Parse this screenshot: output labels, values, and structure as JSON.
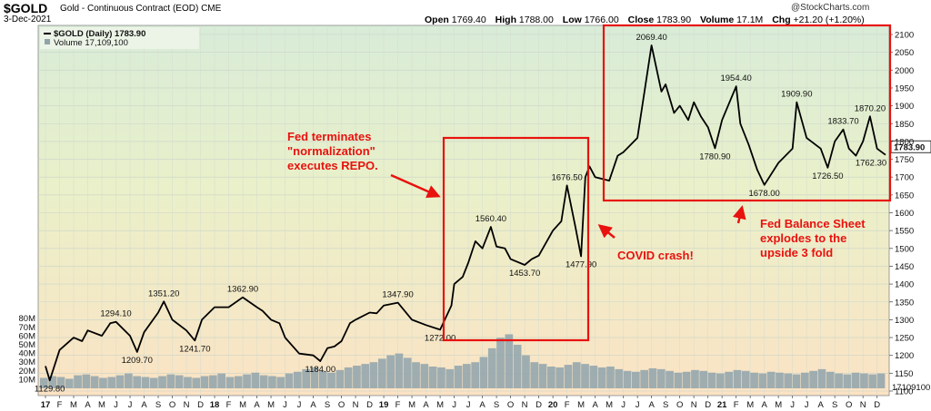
{
  "header": {
    "symbol": "$GOLD",
    "subtitle": "Gold - Continuous Contract (EOD)",
    "exchange": "CME",
    "date": "3-Dec-2021",
    "brand": "@StockCharts.com",
    "ohlc": [
      {
        "k": "Open",
        "v": "1769.40"
      },
      {
        "k": "High",
        "v": "1788.00"
      },
      {
        "k": "Low",
        "v": "1766.00"
      },
      {
        "k": "Close",
        "v": "1783.90"
      },
      {
        "k": "Volume",
        "v": "17.1M"
      },
      {
        "k": "Chg",
        "v": "+21.20 (+1.20%)"
      }
    ]
  },
  "legend": {
    "price": "$GOLD (Daily) 1783.90",
    "volume": "Volume 17,109,100"
  },
  "chart_data": {
    "type": "line",
    "title": "Gold - Continuous Contract (EOD)",
    "y_range": [
      1100,
      2100
    ],
    "y_ticks": [
      1100,
      1150,
      1200,
      1250,
      1300,
      1350,
      1400,
      1450,
      1500,
      1550,
      1600,
      1650,
      1700,
      1750,
      1800,
      1850,
      1900,
      1950,
      2000,
      2050,
      2100
    ],
    "y_tick_labels": [
      "1100",
      "1150",
      "1200",
      "1250",
      "1300",
      "1350",
      "1400",
      "1450",
      "1500",
      "1550",
      "1600",
      "1650",
      "1700",
      "1750",
      "1800",
      "1850",
      "1900",
      "1950",
      "2000",
      "2050",
      "2100"
    ],
    "volume_ticks": [
      "10M",
      "20M",
      "30M",
      "40M",
      "50M",
      "60M",
      "70M",
      "80M"
    ],
    "volume_tick_values": [
      10,
      20,
      30,
      40,
      50,
      60,
      70,
      80
    ],
    "x_labels": [
      "17",
      "F",
      "M",
      "A",
      "M",
      "J",
      "J",
      "A",
      "S",
      "O",
      "N",
      "D",
      "18",
      "F",
      "M",
      "A",
      "M",
      "J",
      "J",
      "A",
      "S",
      "O",
      "N",
      "D",
      "19",
      "F",
      "M",
      "A",
      "M",
      "J",
      "J",
      "A",
      "S",
      "O",
      "N",
      "D",
      "20",
      "F",
      "M",
      "A",
      "M",
      "J",
      "J",
      "A",
      "S",
      "O",
      "N",
      "D",
      "21",
      "F",
      "M",
      "A",
      "M",
      "J",
      "J",
      "A",
      "S",
      "O",
      "N",
      "D"
    ],
    "last_price_label": "1783.90",
    "last_volume_label": "17109100",
    "series": [
      {
        "name": "$GOLD (Daily)",
        "x_month_index": [
          0,
          0.3,
          1,
          2,
          2.6,
          3,
          4,
          4.6,
          5,
          6,
          6.5,
          7,
          8,
          8.4,
          9,
          10,
          10.6,
          11.1,
          12,
          13,
          14,
          15,
          15.4,
          16,
          16.6,
          17,
          18,
          19,
          19.5,
          20,
          20.5,
          21,
          21.6,
          22,
          23,
          23.5,
          24,
          25,
          26,
          27,
          28,
          28.8,
          29,
          29.6,
          30,
          30.5,
          31,
          31.6,
          32,
          32.6,
          33,
          34,
          34.5,
          35,
          36,
          36.6,
          37,
          37.6,
          38,
          38.3,
          38.6,
          39,
          40,
          40.6,
          41,
          42,
          43,
          43.7,
          44,
          44.6,
          45,
          45.6,
          46,
          46.5,
          47,
          47.5,
          48,
          49,
          49.3,
          49.9,
          50.5,
          51,
          52,
          53,
          53.3,
          54,
          55,
          55.5,
          56,
          56.6,
          57,
          57.5,
          58,
          58.5,
          59,
          59.6
        ],
        "values": [
          1170,
          1129.8,
          1215,
          1250,
          1240,
          1270,
          1255,
          1290,
          1294.1,
          1255,
          1209.7,
          1265,
          1320,
          1351.2,
          1300,
          1270,
          1241.7,
          1300,
          1335,
          1335,
          1362.9,
          1335,
          1325,
          1300,
          1290,
          1250,
          1205,
          1200,
          1184,
          1220,
          1225,
          1240,
          1290,
          1300,
          1320,
          1318,
          1340,
          1347.9,
          1300,
          1285,
          1272,
          1340,
          1400,
          1420,
          1460,
          1520,
          1500,
          1560.4,
          1505,
          1500,
          1470,
          1453.7,
          1470,
          1480,
          1550,
          1576,
          1676.5,
          1560,
          1477.9,
          1700,
          1730,
          1700,
          1690,
          1760,
          1770,
          1810,
          2069.4,
          1940,
          1960,
          1880,
          1900,
          1860,
          1910,
          1870,
          1840,
          1780.9,
          1860,
          1954.4,
          1850,
          1790,
          1720,
          1678,
          1740,
          1780,
          1909.9,
          1810,
          1780,
          1726.5,
          1800,
          1833.7,
          1780,
          1760,
          1800,
          1870.2,
          1780,
          1762.3
        ]
      }
    ],
    "volume_bars_M": [
      12,
      14,
      13,
      11,
      15,
      16,
      14,
      12,
      13,
      15,
      17,
      14,
      13,
      12,
      14,
      16,
      15,
      13,
      12,
      14,
      15,
      17,
      13,
      14,
      16,
      18,
      15,
      14,
      13,
      17,
      19,
      22,
      24,
      20,
      18,
      21,
      24,
      26,
      28,
      30,
      34,
      38,
      40,
      35,
      30,
      28,
      25,
      24,
      22,
      26,
      28,
      30,
      36,
      46,
      58,
      62,
      50,
      38,
      30,
      28,
      25,
      24,
      27,
      30,
      28,
      26,
      24,
      25,
      22,
      20,
      19,
      21,
      23,
      22,
      20,
      18,
      19,
      21,
      20,
      18,
      17,
      19,
      21,
      20,
      18,
      17,
      19,
      18,
      17,
      16,
      18,
      20,
      22,
      19,
      17,
      16,
      18,
      17,
      16,
      17
    ],
    "point_labels": [
      {
        "text": "1129.80",
        "x": 0.3,
        "y": 1129.8
      },
      {
        "text": "1294.10",
        "x": 5,
        "y": 1294.1
      },
      {
        "text": "1209.70",
        "x": 6.5,
        "y": 1209.7
      },
      {
        "text": "1351.20",
        "x": 8.4,
        "y": 1351.2
      },
      {
        "text": "1241.70",
        "x": 10.6,
        "y": 1241.7
      },
      {
        "text": "1362.90",
        "x": 14,
        "y": 1362.9
      },
      {
        "text": "1184.00",
        "x": 19.5,
        "y": 1184
      },
      {
        "text": "1347.90",
        "x": 25,
        "y": 1347.9
      },
      {
        "text": "1272.00",
        "x": 28,
        "y": 1272
      },
      {
        "text": "1560.40",
        "x": 31.6,
        "y": 1560.4
      },
      {
        "text": "1453.70",
        "x": 34,
        "y": 1453.7
      },
      {
        "text": "1676.50",
        "x": 37,
        "y": 1676.5
      },
      {
        "text": "1477.90",
        "x": 38,
        "y": 1477.9
      },
      {
        "text": "2069.40",
        "x": 43,
        "y": 2069.4
      },
      {
        "text": "1780.90",
        "x": 47.5,
        "y": 1780.9
      },
      {
        "text": "1954.40",
        "x": 49,
        "y": 1954.4
      },
      {
        "text": "1678.00",
        "x": 51,
        "y": 1678
      },
      {
        "text": "1909.90",
        "x": 53.3,
        "y": 1909.9
      },
      {
        "text": "1726.50",
        "x": 55.5,
        "y": 1726.5
      },
      {
        "text": "1833.70",
        "x": 56.6,
        "y": 1833.7
      },
      {
        "text": "1870.20",
        "x": 58.5,
        "y": 1870.2
      },
      {
        "text": "1762.30",
        "x": 59.6,
        "y": 1762.3
      }
    ],
    "annotations": [
      {
        "lines": [
          "Fed terminates",
          "\"normalization\"",
          "executes REPO."
        ]
      },
      {
        "lines": [
          "COVID crash!"
        ]
      },
      {
        "lines": [
          "Fed Balance Sheet",
          "explodes to the",
          "upside 3 fold"
        ]
      }
    ],
    "colors": {
      "price_line": "#000000",
      "volume": "#8fa3ab",
      "annotation": "#e8120f",
      "bg_top": "#d8ecd8",
      "bg_bottom": "#fbe3c4"
    }
  }
}
